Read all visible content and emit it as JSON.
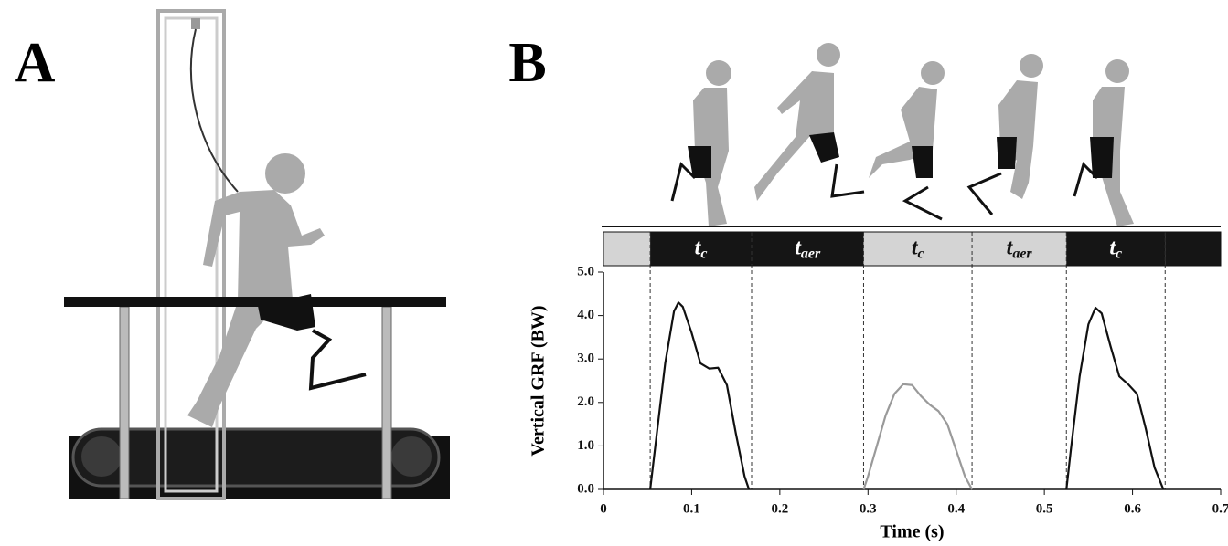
{
  "panel_labels": [
    "A",
    "B"
  ],
  "chart_data": {
    "type": "line",
    "ylabel": "Vertical GRF (BW)",
    "xlabel": "Time (s)",
    "xlim": [
      0,
      0.7
    ],
    "xticks": [
      0,
      0.1,
      0.2,
      0.3,
      0.4,
      0.5,
      0.6,
      0.7
    ],
    "ylim": [
      0,
      5
    ],
    "yticks": [
      {
        "value": 0,
        "label": "0.0"
      },
      {
        "value": 1,
        "label": "1.0"
      },
      {
        "value": 2,
        "label": "2.0"
      },
      {
        "value": 3,
        "label": "3.0"
      },
      {
        "value": 4,
        "label": "4.0"
      },
      {
        "value": 5,
        "label": "5.0"
      }
    ],
    "phases": [
      {
        "start": 0,
        "end": 0.053,
        "color": "#d4d4d4"
      },
      {
        "start": 0.053,
        "end": 0.168,
        "color": "#151515",
        "label": {
          "main": "t",
          "sub": "c"
        }
      },
      {
        "start": 0.168,
        "end": 0.295,
        "color": "#151515",
        "label": {
          "main": "t",
          "sub": "aer"
        }
      },
      {
        "start": 0.295,
        "end": 0.418,
        "color": "#d4d4d4",
        "label": {
          "main": "t",
          "sub": "c"
        }
      },
      {
        "start": 0.418,
        "end": 0.525,
        "color": "#d4d4d4",
        "label": {
          "main": "t",
          "sub": "aer"
        }
      },
      {
        "start": 0.525,
        "end": 0.637,
        "color": "#151515",
        "label": {
          "main": "t",
          "sub": "c"
        }
      },
      {
        "start": 0.637,
        "end": 0.7,
        "color": "#151515"
      }
    ],
    "series": [
      {
        "color": "#111111",
        "x": [
          0.053,
          0.06,
          0.07,
          0.08,
          0.085,
          0.09,
          0.1,
          0.11,
          0.12,
          0.13,
          0.14,
          0.15,
          0.16,
          0.165
        ],
        "values": [
          0,
          1.2,
          2.9,
          4.1,
          4.3,
          4.2,
          3.6,
          2.9,
          2.78,
          2.8,
          2.4,
          1.3,
          0.3,
          0
        ]
      },
      {
        "color": "#9a9a9a",
        "x": [
          0.295,
          0.3,
          0.31,
          0.32,
          0.33,
          0.34,
          0.35,
          0.36,
          0.37,
          0.38,
          0.39,
          0.4,
          0.41,
          0.418
        ],
        "values": [
          0,
          0.3,
          1.0,
          1.7,
          2.2,
          2.42,
          2.4,
          2.15,
          1.95,
          1.8,
          1.5,
          0.9,
          0.3,
          0
        ]
      },
      {
        "color": "#111111",
        "x": [
          0.525,
          0.53,
          0.54,
          0.55,
          0.558,
          0.565,
          0.575,
          0.585,
          0.595,
          0.605,
          0.615,
          0.625,
          0.635
        ],
        "values": [
          0,
          0.9,
          2.6,
          3.8,
          4.18,
          4.05,
          3.3,
          2.6,
          2.42,
          2.2,
          1.4,
          0.5,
          0
        ]
      }
    ]
  }
}
